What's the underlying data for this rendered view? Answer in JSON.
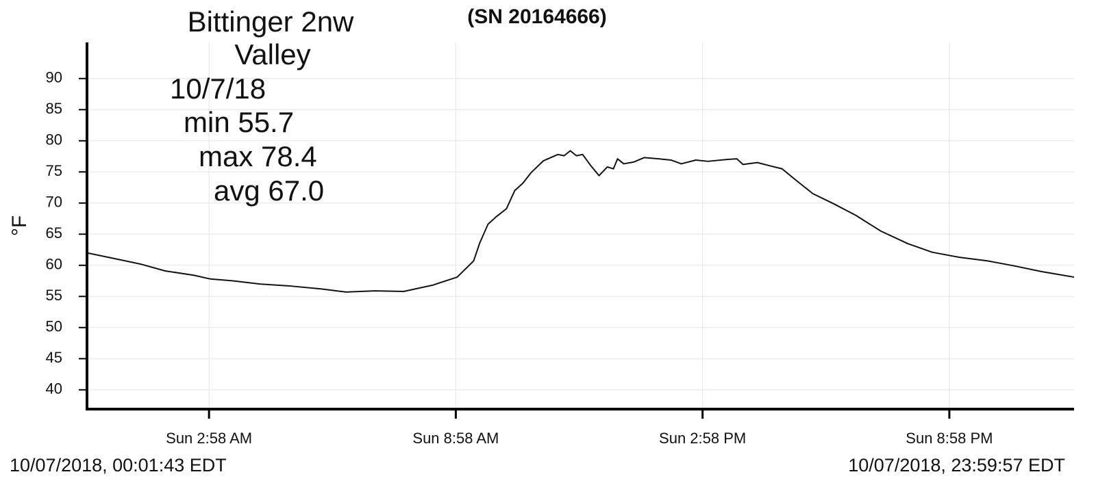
{
  "chart_data": {
    "type": "line",
    "title": "(SN 20164666)",
    "y_label": "°F",
    "annotations": [
      "Bittinger 2nw",
      "Valley",
      "10/7/18",
      "min 55.7",
      "max 78.4",
      "avg 67.0"
    ],
    "start_label": "10/07/2018, 00:01:43 EDT",
    "end_label": "10/07/2018, 23:59:57 EDT",
    "xlim": [
      0,
      24
    ],
    "ylim": [
      36.9,
      95.8
    ],
    "xticks": [
      {
        "value": 2.967,
        "label": "Sun 2:58 AM"
      },
      {
        "value": 8.967,
        "label": "Sun 8:58 AM"
      },
      {
        "value": 14.967,
        "label": "Sun 2:58 PM"
      },
      {
        "value": 20.967,
        "label": "Sun 8:58 PM"
      }
    ],
    "yticks": [
      40,
      45,
      50,
      55,
      60,
      65,
      70,
      75,
      80,
      85,
      90
    ],
    "grid": true,
    "x": [
      0,
      0.8,
      1.3,
      1.9,
      2.6,
      3.0,
      3.55,
      4.2,
      4.9,
      5.7,
      6.3,
      7.0,
      7.7,
      8.4,
      9.0,
      9.4,
      9.55,
      9.75,
      9.95,
      10.2,
      10.4,
      10.6,
      10.8,
      11.1,
      11.45,
      11.6,
      11.75,
      11.9,
      12.05,
      12.25,
      12.45,
      12.65,
      12.8,
      12.9,
      13.05,
      13.3,
      13.55,
      13.9,
      14.2,
      14.45,
      14.8,
      15.1,
      15.55,
      15.8,
      15.95,
      16.3,
      16.65,
      16.9,
      17.25,
      17.65,
      18.15,
      18.7,
      19.3,
      19.95,
      20.55,
      21.2,
      21.9,
      22.55,
      23.2,
      24.0
    ],
    "series": [
      {
        "color": "#111111",
        "values": [
          62.0,
          60.9,
          60.2,
          59.1,
          58.4,
          57.8,
          57.5,
          57.0,
          56.7,
          56.2,
          55.7,
          55.9,
          55.8,
          56.8,
          58.1,
          60.7,
          63.6,
          66.6,
          67.8,
          69.1,
          72.0,
          73.2,
          74.9,
          76.8,
          77.8,
          77.6,
          78.4,
          77.6,
          77.8,
          76.0,
          74.4,
          75.8,
          75.5,
          77.1,
          76.3,
          76.6,
          77.3,
          77.1,
          76.9,
          76.3,
          76.9,
          76.7,
          77.0,
          77.1,
          76.2,
          76.5,
          75.9,
          75.5,
          73.6,
          71.5,
          69.9,
          68.0,
          65.5,
          63.5,
          62.1,
          61.3,
          60.7,
          59.9,
          59.0,
          58.1
        ]
      }
    ]
  }
}
